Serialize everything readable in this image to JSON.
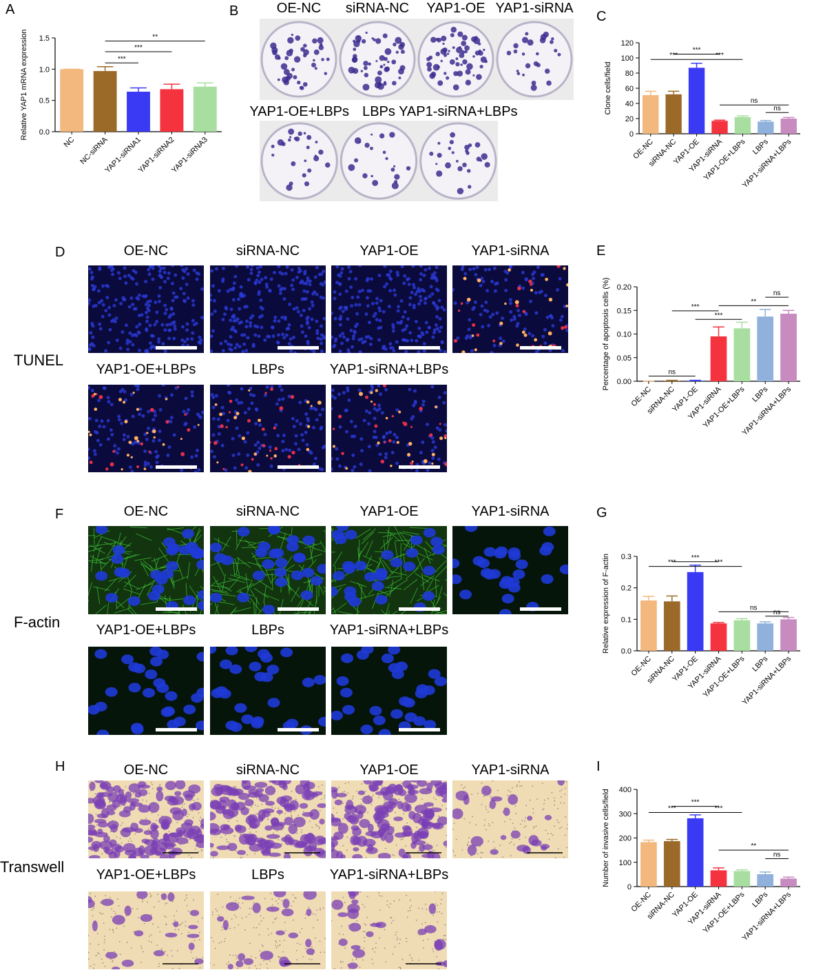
{
  "chart_data": [
    {
      "type": "bar",
      "label": "A",
      "ylabel": "Relative YAP1 mRNA expression",
      "categories": [
        "NC",
        "NC-siRNA",
        "YAP1-siRNA1",
        "YAP1-siRNA2",
        "YAP1-siRNA3"
      ],
      "values": [
        1.0,
        0.97,
        0.64,
        0.68,
        0.72
      ],
      "errors": [
        0,
        0.07,
        0.06,
        0.08,
        0.06
      ],
      "colors": [
        "#f2b87d",
        "#9b6a28",
        "#3a3af5",
        "#f5333f",
        "#a8dea0"
      ],
      "ylim": [
        0,
        1.5
      ],
      "yticks": [
        {
          "value": 0,
          "label": "0.0"
        },
        0.5,
        {
          "value": 1,
          "label": "1.0"
        },
        1.5
      ],
      "brackets": [
        {
          "from": "NC-siRNA",
          "to": "YAP1-siRNA1",
          "y": 1.1,
          "label": "***"
        },
        {
          "from": "NC-siRNA",
          "to": "YAP1-siRNA2",
          "y": 1.28,
          "label": "***"
        },
        {
          "from": "NC-siRNA",
          "to": "YAP1-siRNA3",
          "y": 1.45,
          "label": "**"
        }
      ]
    },
    {
      "type": "bar",
      "label": "C",
      "ylabel": "Clone cells/field",
      "categories": [
        "OE-NC",
        "siRNA-NC",
        "YAP1-OE",
        "YAP1-siRNA",
        "YAP1-OE+LBPs",
        "LBPs",
        "YAP1-siRNA+LBPs"
      ],
      "values": [
        51,
        52,
        87,
        17,
        22,
        16,
        20
      ],
      "errors": [
        5,
        4,
        6,
        1,
        1.5,
        1.5,
        1.5
      ],
      "colors": [
        "#f2b87d",
        "#9b6a28",
        "#3a3af5",
        "#f5333f",
        "#a8dea0",
        "#8fb1dc",
        "#c78bbf"
      ],
      "ylim": [
        0,
        120
      ],
      "yticks": [
        0,
        20,
        40,
        60,
        80,
        100,
        120
      ],
      "brackets": [
        {
          "from": "siRNA-NC",
          "to": "YAP1-siRNA",
          "y": 105,
          "label": "***"
        },
        {
          "from": "OE-NC",
          "to": "YAP1-OE",
          "y": 98,
          "label": "***"
        },
        {
          "from": "YAP1-OE",
          "to": "YAP1-OE+LBPs",
          "y": 98,
          "label": "***"
        },
        {
          "from": "YAP1-siRNA",
          "to": "YAP1-siRNA+LBPs",
          "y": 38,
          "label": "ns"
        },
        {
          "from": "LBPs",
          "to": "YAP1-siRNA+LBPs",
          "y": 28,
          "label": "ns"
        }
      ]
    },
    {
      "type": "bar",
      "label": "E",
      "ylabel": "Percentage of apoptosis cells (%)",
      "categories": [
        "OE-NC",
        "siRNA-NC",
        "YAP1-OE",
        "YAP1-siRNA",
        "YAP1-OE+LBPs",
        "LBPs",
        "YAP1-siRNA+LBPs"
      ],
      "values": [
        0,
        0.001,
        0.001,
        0.095,
        0.112,
        0.137,
        0.143
      ],
      "errors": [
        0,
        0.001,
        0.001,
        0.02,
        0.013,
        0.015,
        0.007
      ],
      "colors": [
        "#f2b87d",
        "#9b6a28",
        "#3a3af5",
        "#f5333f",
        "#a8dea0",
        "#8fb1dc",
        "#c78bbf"
      ],
      "ylim": [
        0,
        0.2
      ],
      "yticks": [
        {
          "value": 0,
          "label": "0.00"
        },
        {
          "value": 0.05,
          "label": "0.05"
        },
        {
          "value": 0.1,
          "label": "0.10"
        },
        {
          "value": 0.15,
          "label": "0.15"
        },
        {
          "value": 0.2,
          "label": "0.20"
        }
      ],
      "brackets": [
        {
          "from": "OE-NC",
          "to": "YAP1-OE",
          "y": 0.011,
          "label": "ns"
        },
        {
          "from": "siRNA-NC",
          "to": "YAP1-siRNA",
          "y": 0.149,
          "label": "***"
        },
        {
          "from": "YAP1-OE",
          "to": "YAP1-OE+LBPs",
          "y": 0.131,
          "label": "***"
        },
        {
          "from": "YAP1-siRNA",
          "to": "YAP1-siRNA+LBPs",
          "y": 0.16,
          "label": "**"
        },
        {
          "from": "LBPs",
          "to": "YAP1-siRNA+LBPs",
          "y": 0.178,
          "label": "ns"
        }
      ]
    },
    {
      "type": "bar",
      "label": "G",
      "ylabel": "Relative expression of F-actin",
      "categories": [
        "OE-NC",
        "siRNA-NC",
        "YAP1-OE",
        "YAP1-siRNA",
        "YAP1-OE+LBPs",
        "LBPs",
        "YAP1-siRNA+LBPs"
      ],
      "values": [
        0.16,
        0.157,
        0.25,
        0.087,
        0.097,
        0.087,
        0.1
      ],
      "errors": [
        0.013,
        0.017,
        0.022,
        0.003,
        0.005,
        0.005,
        0.006
      ],
      "colors": [
        "#f2b87d",
        "#9b6a28",
        "#3a3af5",
        "#f5333f",
        "#a8dea0",
        "#8fb1dc",
        "#c78bbf"
      ],
      "ylim": [
        0,
        0.3
      ],
      "yticks": [
        {
          "value": 0,
          "label": "0.0"
        },
        0.1,
        0.2,
        0.3
      ],
      "brackets": [
        {
          "from": "siRNA-NC",
          "to": "YAP1-siRNA",
          "y": 0.283,
          "label": "***"
        },
        {
          "from": "OE-NC",
          "to": "YAP1-OE",
          "y": 0.268,
          "label": "***"
        },
        {
          "from": "YAP1-OE",
          "to": "YAP1-OE+LBPs",
          "y": 0.268,
          "label": "***"
        },
        {
          "from": "YAP1-siRNA",
          "to": "YAP1-siRNA+LBPs",
          "y": 0.124,
          "label": "ns"
        },
        {
          "from": "LBPs",
          "to": "YAP1-siRNA+LBPs",
          "y": 0.11,
          "label": "ns"
        }
      ]
    },
    {
      "type": "bar",
      "label": "I",
      "ylabel": "Number of invasive cells/field",
      "categories": [
        "OE-NC",
        "siRNA-NC",
        "YAP1-OE",
        "YAP1-siRNA",
        "YAP1-OE+LBPs",
        "LBPs",
        "YAP1-siRNA+LBPs"
      ],
      "values": [
        183,
        187,
        281,
        67,
        64,
        51,
        33
      ],
      "errors": [
        8,
        7,
        14,
        10,
        5,
        9,
        6
      ],
      "colors": [
        "#f2b87d",
        "#9b6a28",
        "#3a3af5",
        "#f5333f",
        "#a8dea0",
        "#8fb1dc",
        "#c78bbf"
      ],
      "ylim": [
        0,
        400
      ],
      "yticks": [
        0,
        100,
        200,
        300,
        400
      ],
      "brackets": [
        {
          "from": "siRNA-NC",
          "to": "YAP1-siRNA",
          "y": 330,
          "label": "***"
        },
        {
          "from": "OE-NC",
          "to": "YAP1-OE",
          "y": 305,
          "label": "***"
        },
        {
          "from": "YAP1-OE",
          "to": "YAP1-OE+LBPs",
          "y": 305,
          "label": "***"
        },
        {
          "from": "YAP1-siRNA",
          "to": "YAP1-siRNA+LBPs",
          "y": 150,
          "label": "**"
        },
        {
          "from": "LBPs",
          "to": "YAP1-siRNA+LBPs",
          "y": 115,
          "label": "ns"
        }
      ]
    }
  ],
  "panels": [
    {
      "letter": "B",
      "rows": [
        [
          "OE-NC",
          "siRNA-NC",
          "YAP1-OE",
          "YAP1-siRNA"
        ],
        [
          "YAP1-OE+LBPs",
          "LBPs",
          "YAP1-siRNA+LBPs"
        ]
      ]
    },
    {
      "letter": "D",
      "row_label": "TUNEL",
      "rows": [
        [
          "OE-NC",
          "siRNA-NC",
          "YAP1-OE",
          "YAP1-siRNA"
        ],
        [
          "YAP1-OE+LBPs",
          "LBPs",
          "YAP1-siRNA+LBPs"
        ]
      ]
    },
    {
      "letter": "F",
      "row_label": "F-actin",
      "rows": [
        [
          "OE-NC",
          "siRNA-NC",
          "YAP1-OE",
          "YAP1-siRNA"
        ],
        [
          "YAP1-OE+LBPs",
          "LBPs",
          "YAP1-siRNA+LBPs"
        ]
      ]
    },
    {
      "letter": "H",
      "row_label": "Transwell",
      "rows": [
        [
          "OE-NC",
          "siRNA-NC",
          "YAP1-OE",
          "YAP1-siRNA"
        ],
        [
          "YAP1-OE+LBPs",
          "LBPs",
          "YAP1-siRNA+LBPs"
        ]
      ]
    }
  ]
}
